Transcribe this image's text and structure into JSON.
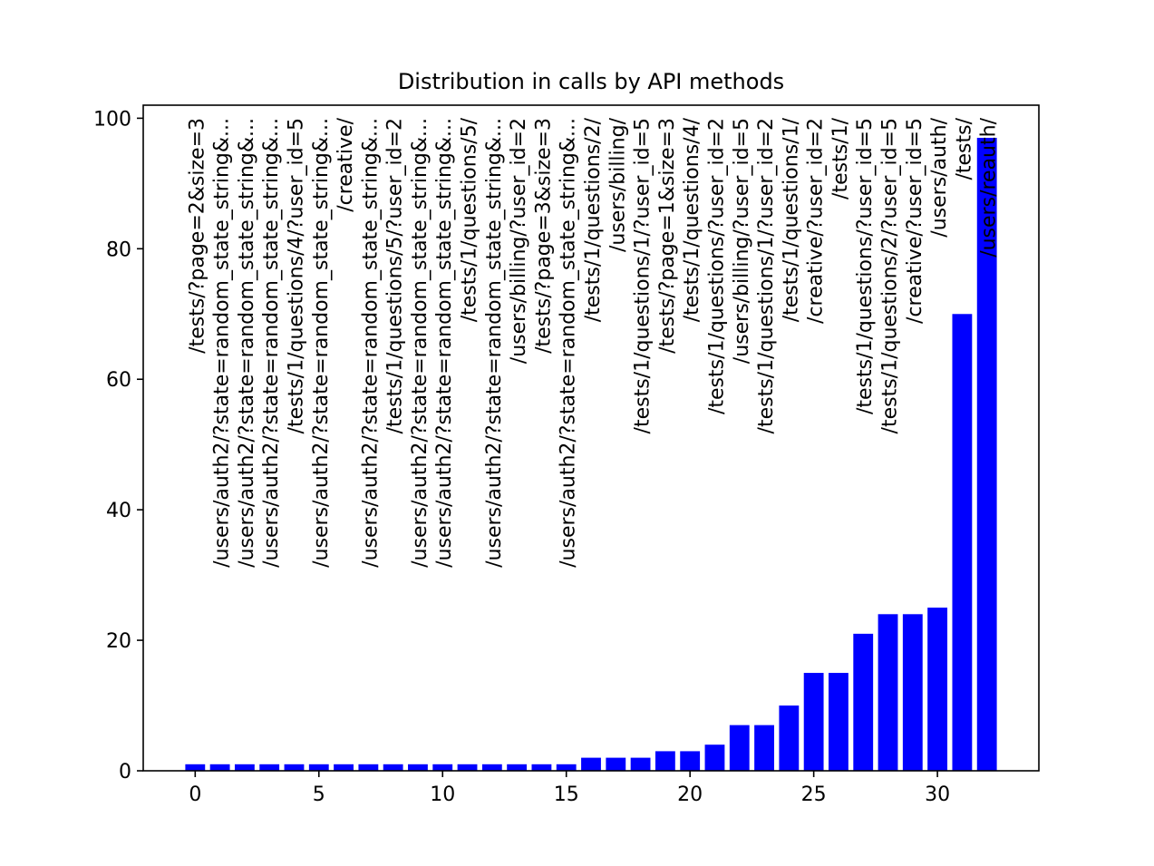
{
  "chart_data": {
    "type": "bar",
    "title": "Distribution in calls by API methods",
    "xlabel": "",
    "ylabel": "",
    "xlim": [
      -2.1,
      34.1
    ],
    "ylim": [
      0,
      102
    ],
    "xticks": [
      0,
      5,
      10,
      15,
      20,
      25,
      30
    ],
    "yticks": [
      0,
      20,
      40,
      60,
      80,
      100
    ],
    "bar_color": "#0000ff",
    "grid": false,
    "x": [
      0,
      1,
      2,
      3,
      4,
      5,
      6,
      7,
      8,
      9,
      10,
      11,
      12,
      13,
      14,
      15,
      16,
      17,
      18,
      19,
      20,
      21,
      22,
      23,
      24,
      25,
      26,
      27,
      28,
      29,
      30,
      31,
      32
    ],
    "values": [
      1,
      1,
      1,
      1,
      1,
      1,
      1,
      1,
      1,
      1,
      1,
      1,
      1,
      1,
      1,
      1,
      2,
      2,
      2,
      3,
      3,
      4,
      7,
      7,
      10,
      15,
      15,
      21,
      24,
      24,
      25,
      70,
      97
    ],
    "bar_labels": [
      "/tests/?page=2&size=3",
      "/users/auth2/?state=random_state_string&...",
      "/users/auth2/?state=random_state_string&...",
      "/users/auth2/?state=random_state_string&...",
      "/tests/1/questions/4/?user_id=5",
      "/users/auth2/?state=random_state_string&...",
      "/creative/",
      "/users/auth2/?state=random_state_string&...",
      "/tests/1/questions/5/?user_id=2",
      "/users/auth2/?state=random_state_string&...",
      "/users/auth2/?state=random_state_string&...",
      "/tests/1/questions/5/",
      "/users/auth2/?state=random_state_string&...",
      "/users/billing/?user_id=2",
      "/tests/?page=3&size=3",
      "/users/auth2/?state=random_state_string&...",
      "/tests/1/questions/2/",
      "/users/billing/",
      "/tests/1/questions/1/?user_id=5",
      "/tests/?page=1&size=3",
      "/tests/1/questions/4/",
      "/tests/1/questions/?user_id=2",
      "/users/billing/?user_id=5",
      "/tests/1/questions/1/?user_id=2",
      "/tests/1/questions/1/",
      "/creative/?user_id=2",
      "/tests/1/",
      "/tests/1/questions/?user_id=5",
      "/tests/1/questions/2/?user_id=5",
      "/creative/?user_id=5",
      "/users/auth/",
      "/tests/",
      "/users/reauth/"
    ]
  }
}
